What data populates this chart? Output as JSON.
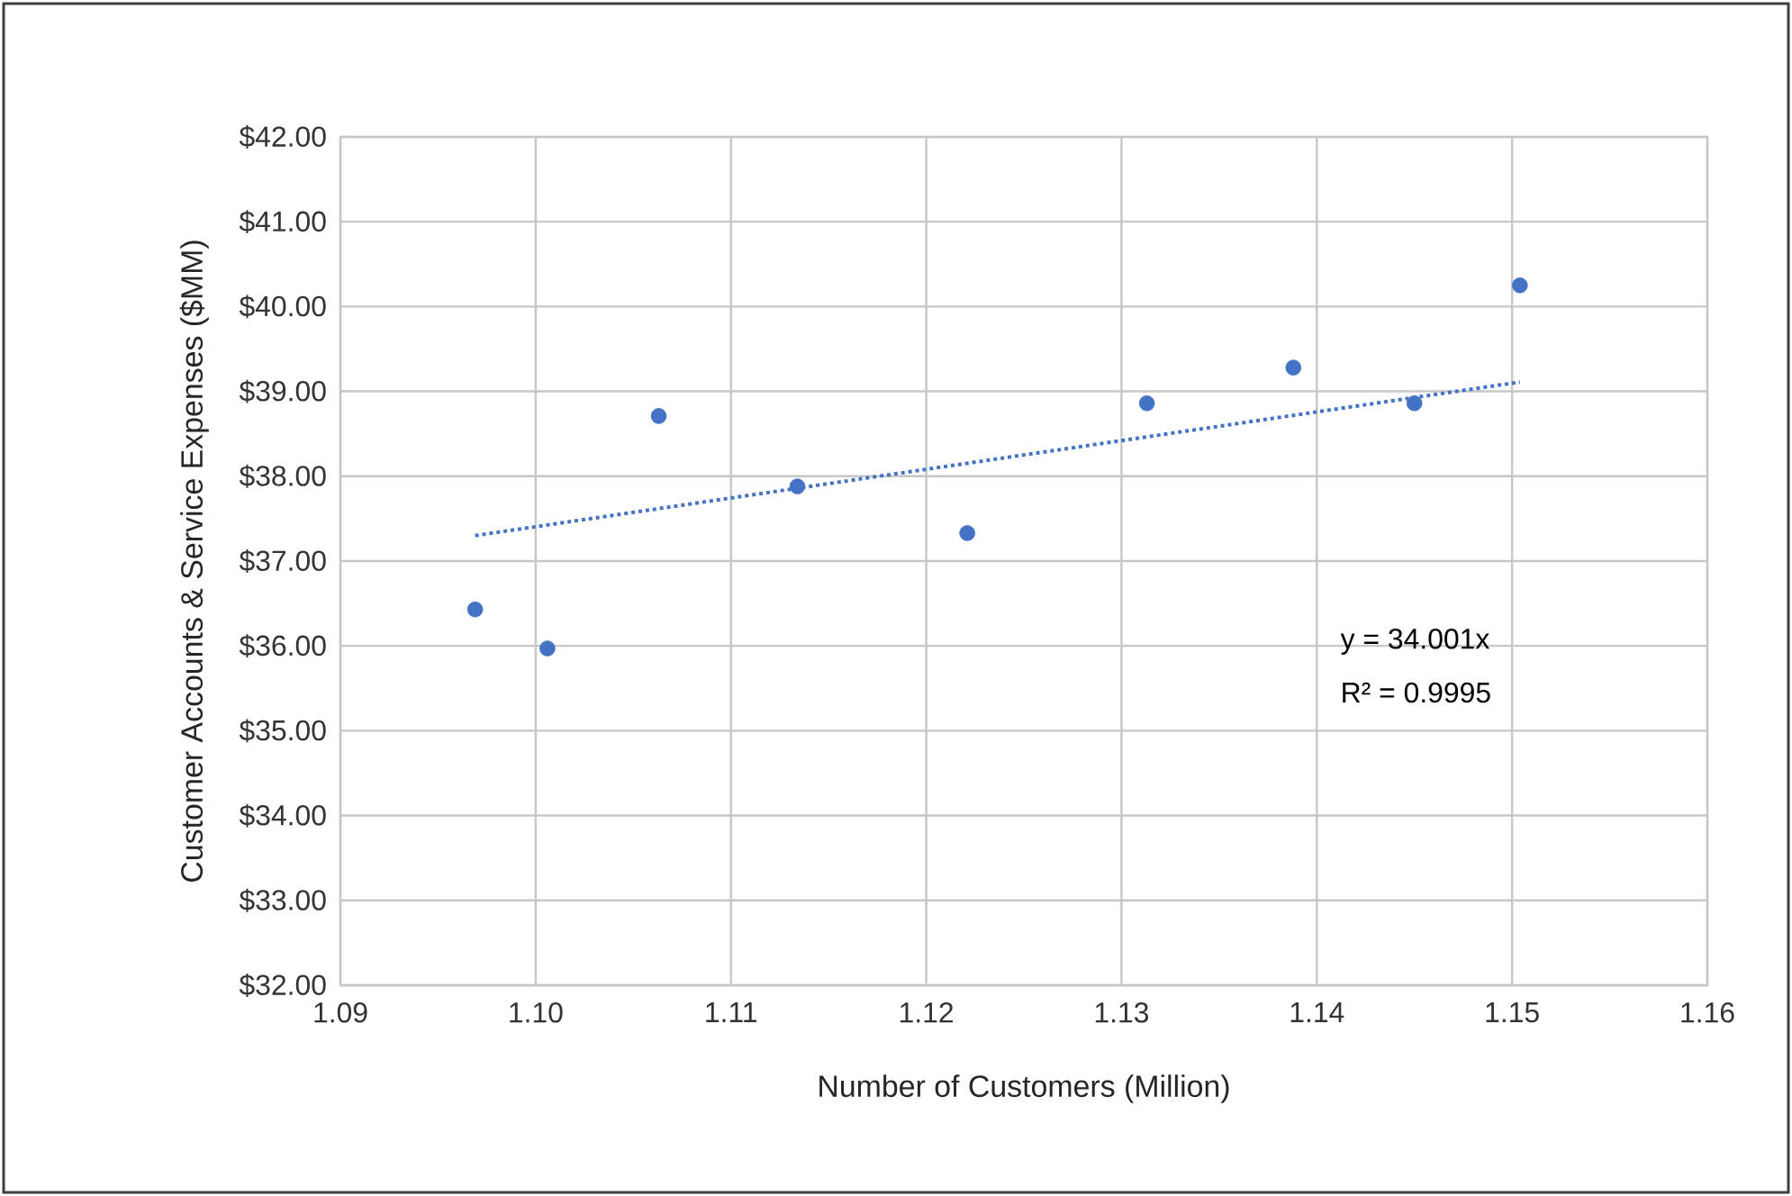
{
  "chart_data": {
    "type": "scatter",
    "xlabel": "Number of Customers (Million)",
    "ylabel": "Customer Accounts & Service Expenses ($MM)",
    "series": [
      {
        "color": "#4472c4",
        "marker": "circle",
        "x": [
          1.0969,
          1.1006,
          1.1063,
          1.1134,
          1.1221,
          1.1313,
          1.1388,
          1.145,
          1.1504
        ],
        "values": [
          36.43,
          35.97,
          38.71,
          37.88,
          37.33,
          38.86,
          39.28,
          38.86,
          40.25
        ]
      },
      {
        "type": "line",
        "color": "#4472c4",
        "line_style": "dotted",
        "marker": "none",
        "x": [
          1.0969,
          1.1504
        ],
        "values": [
          37.3,
          39.11
        ]
      }
    ],
    "xlim": [
      1.09,
      1.16
    ],
    "xticks": [
      1.09,
      {
        "value": 1.1,
        "label": "1.10"
      },
      1.11,
      1.12,
      1.13,
      1.14,
      1.15,
      1.16
    ],
    "ylim": [
      32,
      42
    ],
    "yticks": [
      {
        "value": 32,
        "label": "$32.00"
      },
      {
        "value": 33,
        "label": "$33.00"
      },
      {
        "value": 34,
        "label": "$34.00"
      },
      {
        "value": 35,
        "label": "$35.00"
      },
      {
        "value": 36,
        "label": "$36.00"
      },
      {
        "value": 37,
        "label": "$37.00"
      },
      {
        "value": 38,
        "label": "$38.00"
      },
      {
        "value": 39,
        "label": "$39.00"
      },
      {
        "value": 40,
        "label": "$40.00"
      },
      {
        "value": 41,
        "label": "$41.00"
      },
      {
        "value": 42,
        "label": "$42.00"
      }
    ],
    "grid": true,
    "annotations": [
      "y = 34.001x",
      "R² = 0.9995"
    ]
  }
}
